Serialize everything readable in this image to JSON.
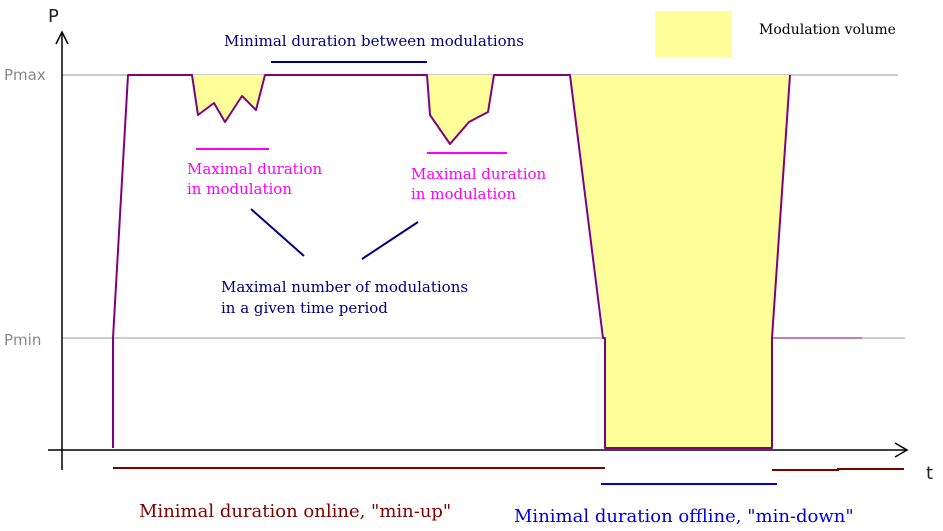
{
  "axes": {
    "y_label": "P",
    "x_label": "t",
    "levels": {
      "max_label": "Pmax",
      "min_label": "Pmin"
    }
  },
  "legend": {
    "label": "Modulation volume",
    "swatch_color": "#ffff99"
  },
  "annotations": {
    "between": "Minimal duration between modulations",
    "in_modulation_1": [
      "Maximal duration",
      "in modulation"
    ],
    "in_modulation_2": [
      "Maximal duration",
      "in modulation"
    ],
    "number": [
      "Maximal number of modulations",
      "in a given time period"
    ],
    "min_up": "Minimal duration online, \"min-up\"",
    "min_down": "Minimal duration offline, \"min-down\""
  },
  "colors": {
    "power_line": "#800080",
    "fill": "#ffff99",
    "navy": "#00007f",
    "magenta": "#ff00ff",
    "dark_red": "#800000",
    "blue": "#0000dd",
    "gridline": "#999999"
  }
}
